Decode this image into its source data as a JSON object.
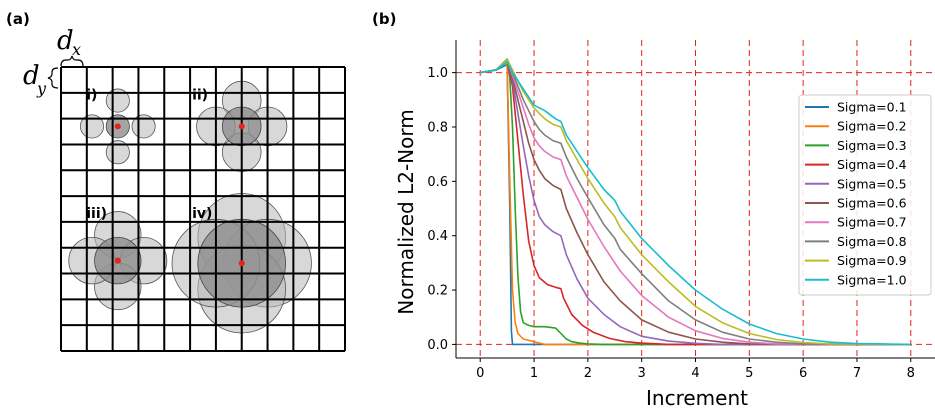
{
  "panel_a": {
    "label": "(a)",
    "dx_label": "d",
    "dx_sub": "x",
    "dy_label": "d",
    "dy_sub": "y",
    "grid_cells": 11,
    "cases": [
      {
        "label": "i)",
        "center_col": 2.2,
        "center_row": 2.3,
        "radius_cells": 0.45,
        "neighbors": "cross"
      },
      {
        "label": "ii)",
        "center_col": 7.0,
        "center_row": 2.3,
        "radius_cells": 0.75,
        "neighbors": "cross"
      },
      {
        "label": "iii)",
        "center_col": 2.2,
        "center_row": 7.5,
        "radius_cells": 0.9,
        "neighbors": "cross"
      },
      {
        "label": "iv)",
        "center_col": 7.0,
        "center_row": 7.6,
        "radius_cells": 1.7,
        "neighbors": "cross"
      }
    ],
    "circle_fill": "#b8b8b8",
    "center_fill": "#8f8f8f",
    "center_dot": "#e8231a"
  },
  "panel_b": {
    "label": "(b)",
    "chart_data": {
      "type": "line",
      "xlabel": "Increment",
      "ylabel": "Normalized L2-Norm",
      "xlim": [
        -0.45,
        8.45
      ],
      "ylim": [
        -0.05,
        1.12
      ],
      "xticks": [
        "0",
        "1",
        "2",
        "3",
        "4",
        "5",
        "6",
        "7",
        "8"
      ],
      "yticks": [
        "0.0",
        "0.2",
        "0.4",
        "0.6",
        "0.8",
        "1.0"
      ],
      "grid": "dashed red at integer x and at y=0, y=1",
      "legend_position": "right",
      "series": [
        {
          "name": "Sigma=0.1",
          "color": "#1f77b4",
          "x": [
            0,
            0.3,
            0.5,
            0.55,
            0.58,
            0.6,
            0.65,
            1.0,
            8.0
          ],
          "y": [
            1.0,
            1.01,
            1.03,
            0.5,
            0.05,
            0.0,
            0.0,
            0.0,
            0.0
          ]
        },
        {
          "name": "Sigma=0.2",
          "color": "#ff7f0e",
          "x": [
            0,
            0.3,
            0.5,
            0.55,
            0.6,
            0.65,
            0.7,
            0.8,
            1.0,
            1.2,
            8.0
          ],
          "y": [
            1.0,
            1.01,
            1.04,
            0.6,
            0.2,
            0.08,
            0.04,
            0.02,
            0.01,
            0.0,
            0.0
          ]
        },
        {
          "name": "Sigma=0.3",
          "color": "#2ca02c",
          "x": [
            0,
            0.3,
            0.5,
            0.55,
            0.6,
            0.65,
            0.7,
            0.75,
            0.8,
            0.9,
            1.0,
            1.2,
            1.4,
            1.5,
            1.6,
            1.7,
            1.85,
            2.0,
            2.3,
            8.0
          ],
          "y": [
            1.0,
            1.01,
            1.05,
            0.98,
            0.8,
            0.5,
            0.25,
            0.12,
            0.08,
            0.07,
            0.065,
            0.065,
            0.06,
            0.04,
            0.02,
            0.01,
            0.005,
            0.002,
            0.0,
            0.0
          ]
        },
        {
          "name": "Sigma=0.4",
          "color": "#d62728",
          "x": [
            0,
            0.3,
            0.5,
            0.6,
            0.7,
            0.8,
            0.9,
            1.0,
            1.1,
            1.25,
            1.4,
            1.5,
            1.55,
            1.7,
            1.9,
            2.1,
            2.4,
            2.7,
            3.0,
            3.5,
            8.0
          ],
          "y": [
            1.0,
            1.01,
            1.05,
            0.95,
            0.75,
            0.55,
            0.38,
            0.29,
            0.245,
            0.22,
            0.21,
            0.205,
            0.17,
            0.11,
            0.07,
            0.045,
            0.022,
            0.01,
            0.005,
            0.0,
            0.0
          ]
        },
        {
          "name": "Sigma=0.5",
          "color": "#9467bd",
          "x": [
            0,
            0.3,
            0.5,
            0.6,
            0.7,
            0.8,
            0.9,
            1.0,
            1.1,
            1.2,
            1.35,
            1.5,
            1.6,
            1.8,
            2.0,
            2.3,
            2.6,
            3.0,
            3.5,
            4.0,
            4.5,
            8.0
          ],
          "y": [
            1.0,
            1.01,
            1.05,
            0.97,
            0.85,
            0.73,
            0.62,
            0.53,
            0.47,
            0.44,
            0.415,
            0.4,
            0.33,
            0.24,
            0.17,
            0.11,
            0.065,
            0.03,
            0.012,
            0.004,
            0.0,
            0.0
          ]
        },
        {
          "name": "Sigma=0.6",
          "color": "#8c564b",
          "x": [
            0,
            0.3,
            0.5,
            0.6,
            0.7,
            0.8,
            0.9,
            1.0,
            1.1,
            1.2,
            1.35,
            1.5,
            1.6,
            1.8,
            2.0,
            2.3,
            2.6,
            3.0,
            3.5,
            4.0,
            4.5,
            5.0,
            8.0
          ],
          "y": [
            1.0,
            1.01,
            1.05,
            0.98,
            0.9,
            0.82,
            0.74,
            0.68,
            0.64,
            0.61,
            0.585,
            0.57,
            0.5,
            0.41,
            0.33,
            0.23,
            0.16,
            0.09,
            0.045,
            0.02,
            0.008,
            0.002,
            0.0
          ]
        },
        {
          "name": "Sigma=0.7",
          "color": "#e377c2",
          "x": [
            0,
            0.3,
            0.5,
            0.6,
            0.7,
            0.8,
            0.9,
            1.0,
            1.1,
            1.2,
            1.35,
            1.5,
            1.6,
            1.8,
            2.0,
            2.3,
            2.6,
            3.0,
            3.5,
            4.0,
            4.5,
            5.0,
            5.5,
            8.0
          ],
          "y": [
            1.0,
            1.01,
            1.05,
            0.99,
            0.93,
            0.87,
            0.81,
            0.76,
            0.73,
            0.71,
            0.69,
            0.68,
            0.62,
            0.54,
            0.46,
            0.36,
            0.27,
            0.18,
            0.1,
            0.05,
            0.022,
            0.008,
            0.002,
            0.0
          ]
        },
        {
          "name": "Sigma=0.8",
          "color": "#7f7f7f",
          "x": [
            0,
            0.3,
            0.5,
            0.6,
            0.7,
            0.8,
            0.9,
            1.0,
            1.1,
            1.2,
            1.35,
            1.5,
            1.6,
            1.8,
            2.0,
            2.3,
            2.5,
            2.6,
            3.0,
            3.5,
            4.0,
            4.5,
            5.0,
            5.5,
            6.0,
            8.0
          ],
          "y": [
            1.0,
            1.01,
            1.05,
            1.0,
            0.95,
            0.9,
            0.86,
            0.82,
            0.79,
            0.77,
            0.75,
            0.74,
            0.69,
            0.61,
            0.54,
            0.44,
            0.39,
            0.35,
            0.26,
            0.16,
            0.09,
            0.045,
            0.02,
            0.008,
            0.002,
            0.0
          ]
        },
        {
          "name": "Sigma=0.9",
          "color": "#bcbd22",
          "x": [
            0,
            0.3,
            0.5,
            0.6,
            0.7,
            0.8,
            0.9,
            1.0,
            1.1,
            1.2,
            1.35,
            1.5,
            1.6,
            1.8,
            2.0,
            2.3,
            2.5,
            2.6,
            3.0,
            3.5,
            4.0,
            4.5,
            5.0,
            5.5,
            6.0,
            6.5,
            8.0
          ],
          "y": [
            1.0,
            1.01,
            1.05,
            1.01,
            0.97,
            0.93,
            0.9,
            0.87,
            0.85,
            0.83,
            0.81,
            0.8,
            0.75,
            0.68,
            0.61,
            0.52,
            0.47,
            0.43,
            0.33,
            0.23,
            0.14,
            0.08,
            0.04,
            0.018,
            0.007,
            0.002,
            0.0
          ]
        },
        {
          "name": "Sigma=1.0",
          "color": "#17becf",
          "x": [
            0,
            0.3,
            0.5,
            0.6,
            0.7,
            0.8,
            0.9,
            1.0,
            1.2,
            1.4,
            1.5,
            1.6,
            1.8,
            2.0,
            2.3,
            2.5,
            2.6,
            3.0,
            3.5,
            4.0,
            4.5,
            5.0,
            5.5,
            6.0,
            6.5,
            7.0,
            8.0
          ],
          "y": [
            1.0,
            1.01,
            1.04,
            1.0,
            0.97,
            0.94,
            0.91,
            0.88,
            0.86,
            0.83,
            0.82,
            0.77,
            0.71,
            0.65,
            0.57,
            0.53,
            0.49,
            0.39,
            0.29,
            0.2,
            0.13,
            0.075,
            0.04,
            0.02,
            0.008,
            0.003,
            0.0
          ]
        }
      ]
    }
  }
}
